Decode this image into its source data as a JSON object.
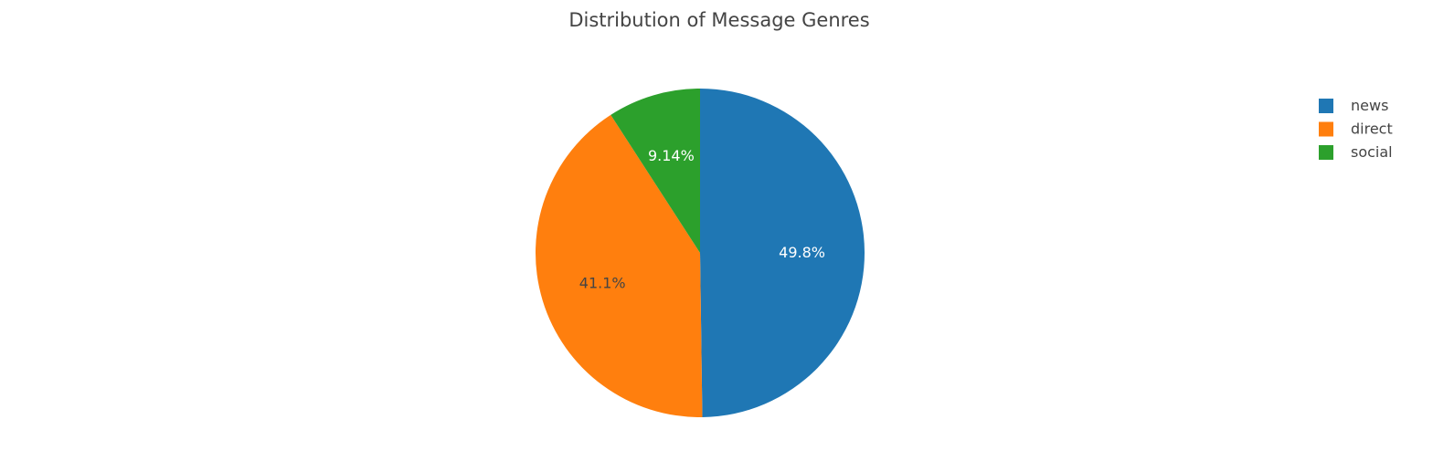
{
  "chart_data": {
    "type": "pie",
    "title": "Distribution of Message Genres",
    "categories": [
      "news",
      "direct",
      "social"
    ],
    "values": [
      49.8,
      41.1,
      9.14
    ],
    "labels": [
      "49.8%",
      "41.1%",
      "9.14%"
    ],
    "colors": [
      "#1f77b4",
      "#ff7f0e",
      "#2ca02c"
    ],
    "label_colors": [
      "#ffffff",
      "#444444",
      "#ffffff"
    ],
    "direction": "clockwise",
    "start_angle_deg": 90,
    "legend_position": "top-right"
  }
}
